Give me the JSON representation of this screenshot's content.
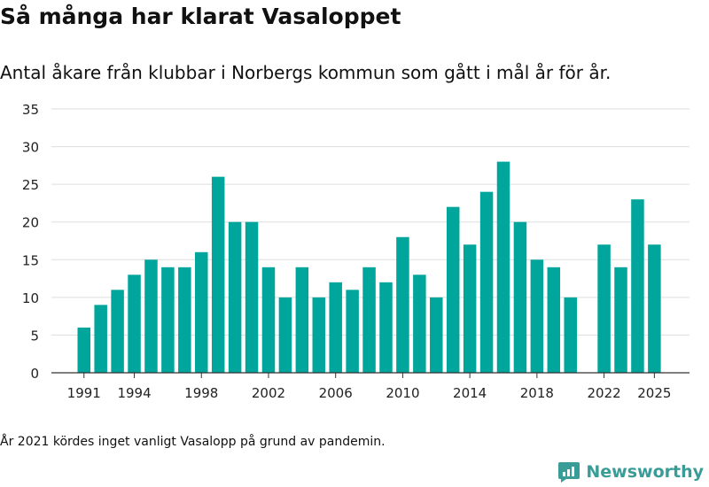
{
  "chart_data": {
    "type": "bar",
    "title": "Så många har klarat Vasaloppet",
    "subtitle": "Antal åkare från klubbar i Norbergs kommun som gått i mål år för år.",
    "categories": [
      1991,
      1992,
      1993,
      1994,
      1995,
      1996,
      1997,
      1998,
      1999,
      2000,
      2001,
      2002,
      2003,
      2004,
      2005,
      2006,
      2007,
      2008,
      2009,
      2010,
      2011,
      2012,
      2013,
      2014,
      2015,
      2016,
      2017,
      2018,
      2019,
      2020,
      2021,
      2022,
      2023,
      2024,
      2025
    ],
    "values": [
      6,
      9,
      11,
      13,
      15,
      14,
      14,
      16,
      26,
      20,
      20,
      14,
      10,
      14,
      10,
      12,
      11,
      14,
      12,
      18,
      13,
      10,
      22,
      17,
      24,
      28,
      20,
      15,
      14,
      10,
      null,
      17,
      14,
      23,
      17
    ],
    "xticks": [
      1991,
      1994,
      1998,
      2002,
      2006,
      2010,
      2014,
      2018,
      2022,
      2025
    ],
    "yticks": [
      0,
      5,
      10,
      15,
      20,
      25,
      30,
      35
    ],
    "ylim": [
      0,
      35
    ],
    "xlabel": "",
    "ylabel": "",
    "bar_color": "#00a59b",
    "grid": true
  },
  "note": "År 2021 kördes inget vanligt Vasalopp på grund av pandemin.",
  "brand": {
    "name": "Newsworthy",
    "icon": "newsworthy-logo-icon",
    "color": "#3a9c97"
  }
}
